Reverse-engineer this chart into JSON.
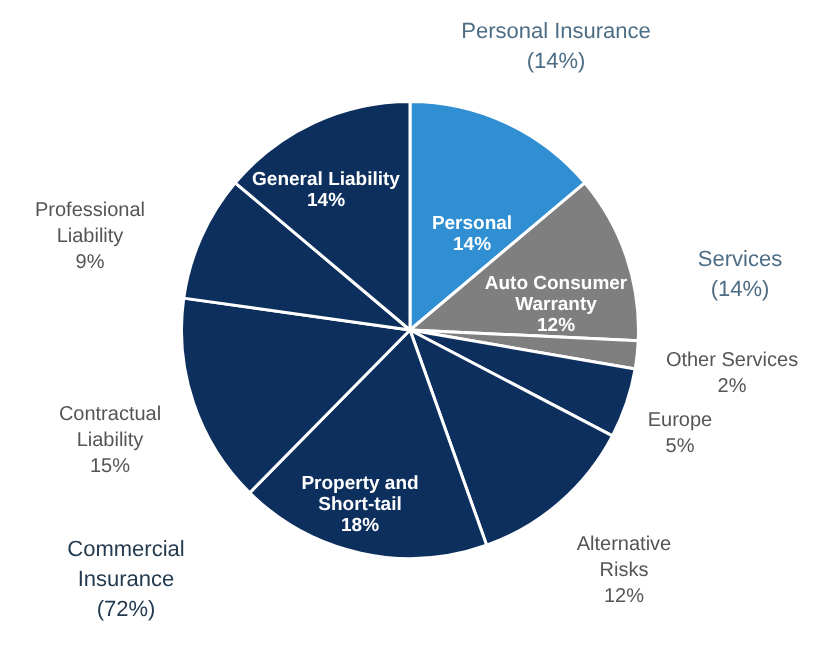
{
  "chart_data": {
    "type": "pie",
    "categories": [
      "Personal",
      "Auto Consumer Warranty",
      "Other Services",
      "Europe",
      "Alternative Risks",
      "Property and Short-tail",
      "Contractual Liability",
      "Professional Liability",
      "General Liability"
    ],
    "values": [
      14,
      12,
      2,
      5,
      12,
      18,
      15,
      9,
      14
    ],
    "value_labels": [
      "14%",
      "12%",
      "2%",
      "5%",
      "12%",
      "18%",
      "15%",
      "9%",
      "14%"
    ],
    "colors": [
      "#2f8fd2",
      "#7f7f7f",
      "#7f7f7f",
      "#0c2f5e",
      "#0c2f5e",
      "#0c2f5e",
      "#0c2f5e",
      "#0c2f5e",
      "#0c2f5e"
    ],
    "annotations": [
      "Personal Insurance (14%)",
      "Services (14%)",
      "Commercial Insurance (72%)"
    ],
    "legend": false
  }
}
